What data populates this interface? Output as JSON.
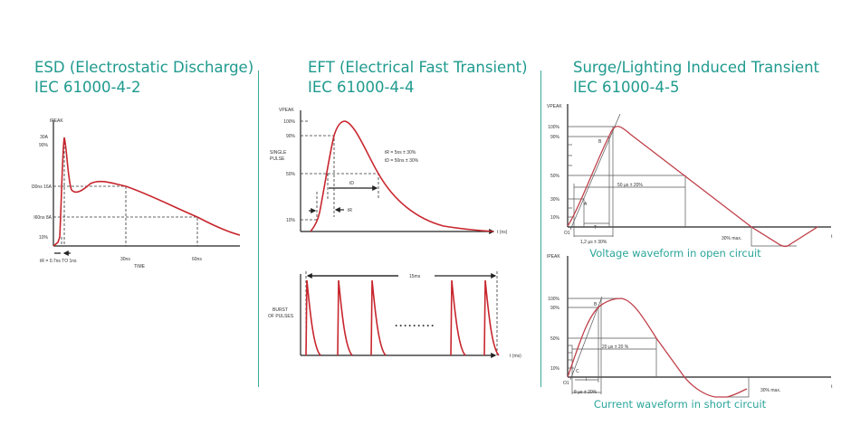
{
  "panels": [
    {
      "title": "ESD (Electrostatic Discharge)",
      "subtitle": "IEC 61000-4-2",
      "y_axis_label": "IPEAK",
      "y_ticks": [
        "30A",
        "90%",
        "I30ns 16A",
        "I60ns 8A",
        "10%"
      ],
      "x_ticks": [
        "30ns",
        "60ns"
      ],
      "rise_label": "tR = 0.7ns TO 1ns",
      "x_axis_label": "TIME"
    },
    {
      "title": "EFT (Electrical Fast Transient)",
      "subtitle": "IEC 61000-4-4",
      "single": {
        "y_axis_label": "VPEAK",
        "y_ticks": [
          "100%",
          "90%",
          "50%",
          "10%"
        ],
        "side_label_1": "SINGLE",
        "side_label_2": "PULSE",
        "spec_1": "tR = 5ns ± 30%",
        "spec_2": "tD = 50ns ± 30%",
        "td_label": "tD",
        "tr_label": "tR",
        "x_axis_label": "t (ns)"
      },
      "burst": {
        "side_label_1": "BURST",
        "side_label_2": "OF PULSES",
        "period_label": "15ms",
        "dots": "·········",
        "x_axis_label": "t (ms)"
      }
    },
    {
      "title": "Surge/Lighting Induced Transient",
      "subtitle": "IEC 61000-4-5",
      "voltage": {
        "y_axis_label": "VPEAK",
        "y_ticks": [
          "100%",
          "90%",
          "50%",
          "30%",
          "10%"
        ],
        "point_a": "A",
        "point_b": "B",
        "origin": "O1",
        "t_label": "T",
        "front_label": "1,2 µs ± 30%",
        "half_label": "50 µs ± 20%",
        "undershoot_label": "30% max.",
        "x_axis_label": "t",
        "caption": "Voltage waveform in open circuit"
      },
      "current": {
        "y_axis_label": "IPEAK",
        "y_ticks": [
          "100%",
          "90%",
          "50%",
          "10%"
        ],
        "point_b": "B",
        "point_c": "C",
        "origin": "O1",
        "t_label": "T",
        "front_label": "8 µs ± 20%",
        "half_label": "20 µs ± 20 %",
        "undershoot_label": "30% max.",
        "x_axis_label": "t",
        "caption": "Current waveform in short circuit"
      }
    }
  ],
  "colors": {
    "title": "#1f9a8e",
    "waveform": "#c8262e",
    "divider": "#3aa79b"
  }
}
